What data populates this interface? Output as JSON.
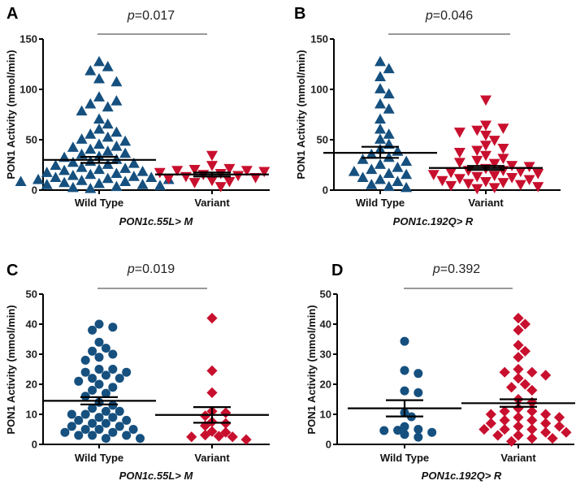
{
  "colors": {
    "wild_type": "#15507F",
    "variant": "#C8102E",
    "error_bar": "#000000"
  },
  "chart_data": [
    {
      "type": "scatter",
      "panel": "A",
      "p_value": "0.017",
      "ylabel": "PON1 Activity (mmol/min)",
      "xlabel": "PON1c.55L> M",
      "ylim": [
        0,
        150
      ],
      "yticks": [
        0,
        50,
        100,
        150
      ],
      "markers": {
        "Wild Type": "triangle-up",
        "Variant": "triangle-down"
      },
      "groups": [
        {
          "name": "Wild Type",
          "mean": 30,
          "sem_low": 27,
          "sem_high": 33,
          "values": [
            127,
            122,
            118,
            110,
            107,
            92,
            88,
            85,
            82,
            78,
            70,
            65,
            60,
            57,
            55,
            52,
            50,
            48,
            45,
            43,
            42,
            40,
            38,
            36,
            35,
            33,
            32,
            30,
            28,
            27,
            26,
            25,
            24,
            22,
            21,
            20,
            19,
            18,
            17,
            16,
            15,
            14,
            13,
            12,
            12,
            11,
            10,
            10,
            9,
            8,
            8,
            7,
            6,
            5,
            5,
            4,
            3,
            2,
            1
          ]
        },
        {
          "name": "Variant",
          "mean": 15.5,
          "sem_low": 13.5,
          "sem_high": 17.5,
          "values": [
            35,
            25,
            22,
            21,
            20,
            20,
            19,
            18,
            17,
            16,
            15,
            14,
            13,
            12,
            10,
            9,
            8,
            4
          ]
        }
      ]
    },
    {
      "type": "scatter",
      "panel": "B",
      "p_value": "0.046",
      "ylabel": "PON1 Activity (mmol/min)",
      "xlabel": "PON1c.192Q> R",
      "ylim": [
        0,
        150
      ],
      "yticks": [
        0,
        50,
        100,
        150
      ],
      "markers": {
        "Wild Type": "triangle-up",
        "Variant": "triangle-down"
      },
      "groups": [
        {
          "name": "Wild Type",
          "mean": 37,
          "sem_low": 32,
          "sem_high": 43,
          "values": [
            127,
            120,
            112,
            100,
            95,
            85,
            80,
            70,
            60,
            55,
            50,
            45,
            40,
            38,
            35,
            32,
            30,
            28,
            25,
            22,
            20,
            18,
            16,
            15,
            12,
            10,
            8,
            5,
            3,
            2
          ]
        },
        {
          "name": "Variant",
          "mean": 22,
          "sem_low": 20,
          "sem_high": 24,
          "values": [
            90,
            65,
            62,
            60,
            58,
            55,
            50,
            45,
            42,
            40,
            38,
            35,
            32,
            30,
            28,
            27,
            25,
            24,
            22,
            20,
            20,
            19,
            18,
            17,
            16,
            15,
            14,
            13,
            12,
            11,
            10,
            9,
            8,
            7,
            6,
            5,
            4,
            3,
            2
          ]
        }
      ]
    },
    {
      "type": "scatter",
      "panel": "C",
      "p_value": "0.019",
      "ylabel": "PON1 Activity (mmol/min)",
      "xlabel": "PON1c.55L> M",
      "ylim": [
        0,
        50
      ],
      "yticks": [
        0,
        10,
        20,
        30,
        40,
        50
      ],
      "markers": {
        "Wild Type": "circle",
        "Variant": "diamond"
      },
      "groups": [
        {
          "name": "Wild Type",
          "mean": 14.5,
          "sem_low": 13.3,
          "sem_high": 15.7,
          "values": [
            40,
            39,
            38,
            34,
            32,
            31,
            30,
            29,
            28,
            25,
            25,
            24,
            24,
            23,
            22,
            22,
            21,
            20,
            19,
            18,
            17,
            16,
            14,
            13,
            12,
            11,
            11,
            10,
            10,
            9,
            9,
            8,
            8,
            7,
            7,
            6,
            6,
            5,
            5,
            5,
            4,
            4,
            3,
            3,
            3,
            2,
            2
          ]
        },
        {
          "name": "Variant",
          "mean": 9.8,
          "sem_low": 7.2,
          "sem_high": 12.4,
          "values": [
            42,
            24.5,
            17.2,
            11,
            10.5,
            9.5,
            7.5,
            7,
            6.2,
            4.3,
            4,
            3.1,
            2.7,
            2.5,
            2.5,
            1.6
          ]
        }
      ]
    },
    {
      "type": "scatter",
      "panel": "D",
      "p_value": "0.392",
      "ylabel": "PON1 Activity (mmol/min)",
      "xlabel": "PON1c.192Q> R",
      "ylim": [
        0,
        50
      ],
      "yticks": [
        0,
        10,
        20,
        30,
        40,
        50
      ],
      "markers": {
        "Wild Type": "circle",
        "Variant": "diamond"
      },
      "groups": [
        {
          "name": "Wild Type",
          "mean": 12,
          "sem_low": 9.3,
          "sem_high": 14.7,
          "values": [
            34.3,
            24.6,
            23.6,
            17.8,
            17.2,
            10.5,
            9.2,
            5.9,
            5,
            4.7,
            4.6,
            4,
            3.3,
            2.4
          ]
        },
        {
          "name": "Variant",
          "mean": 13.7,
          "sem_low": 12.5,
          "sem_high": 15,
          "values": [
            42,
            40,
            38,
            33,
            31,
            29,
            25,
            24,
            24,
            23,
            22,
            20,
            19,
            18,
            15,
            14,
            12,
            11,
            11,
            10,
            10,
            9,
            9,
            8,
            8,
            7,
            7,
            6,
            6,
            5,
            5,
            5,
            4,
            4,
            3,
            3,
            2,
            2,
            1
          ]
        }
      ]
    }
  ]
}
